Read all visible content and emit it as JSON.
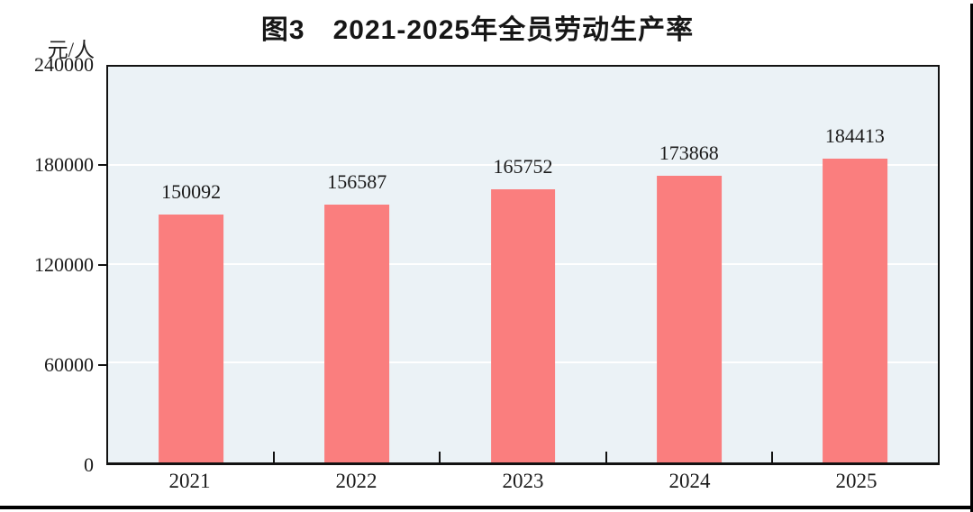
{
  "title": "图3　2021-2025年全员劳动生产率",
  "y_axis_unit": "元/人",
  "colors": {
    "bar_fill": "#FA7E7E",
    "plot_background": "#EBF2F6",
    "gridline": "#FFFFFF",
    "axis_border": "#121212",
    "text": "#1B1B1B"
  },
  "chart_data": {
    "type": "bar",
    "title": "图3　2021-2025年全员劳动生产率",
    "categories": [
      "2021",
      "2022",
      "2023",
      "2024",
      "2025"
    ],
    "values": [
      150092,
      156587,
      165752,
      173868,
      184413
    ],
    "data_labels": [
      "150092",
      "156587",
      "165752",
      "173868",
      "184413"
    ],
    "xlabel": "",
    "ylabel": "元/人",
    "ylim": [
      0,
      240000
    ],
    "ytick_values": [
      0,
      60000,
      120000,
      180000,
      240000
    ],
    "ytick_labels": [
      "0",
      "60000",
      "120000",
      "180000",
      "240000"
    ],
    "gridline_values": [
      60000,
      120000,
      180000
    ],
    "grid": "horizontal",
    "legend_position": "none",
    "bar_color": "#FA7E7E"
  }
}
